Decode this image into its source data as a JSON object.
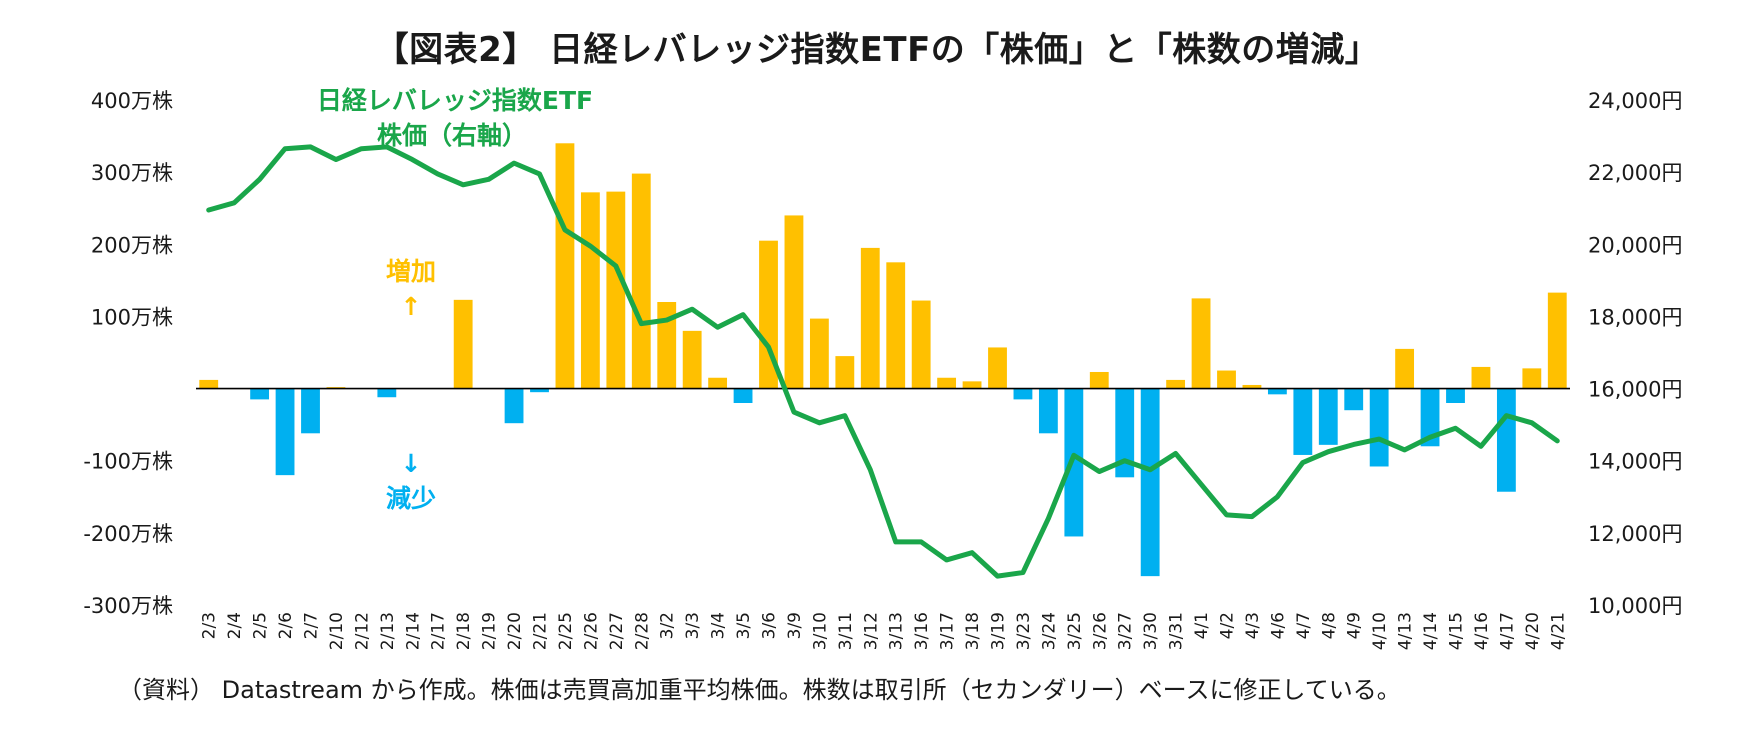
{
  "title": "【図表2】 日経レバレッジ指数ETFの「株価」と「株数の増減」",
  "source": "（資料） Datastream から作成。株価は売買高加重平均株価。株数は取引所（セカンダリー）ベースに修正している。",
  "colors": {
    "increase": "#FFC000",
    "decrease": "#00B0F0",
    "line": "#1AA64A",
    "axis": "#000000"
  },
  "annotations": {
    "line_label_1": "日経レバレッジ指数ETF",
    "line_label_2": "株価（右軸）",
    "increase_label": "増加",
    "increase_arrow": "↑",
    "decrease_label": "減少",
    "decrease_arrow": "↓"
  },
  "chart_data": {
    "type": "bar+line",
    "title": "【図表2】 日経レバレッジ指数ETFの「株価」と「株数の増減」",
    "categories": [
      "2/3",
      "2/4",
      "2/5",
      "2/6",
      "2/7",
      "2/10",
      "2/12",
      "2/13",
      "2/14",
      "2/17",
      "2/18",
      "2/19",
      "2/20",
      "2/21",
      "2/25",
      "2/26",
      "2/27",
      "2/28",
      "3/2",
      "3/3",
      "3/4",
      "3/5",
      "3/6",
      "3/9",
      "3/10",
      "3/11",
      "3/12",
      "3/13",
      "3/16",
      "3/17",
      "3/18",
      "3/19",
      "3/23",
      "3/24",
      "3/25",
      "3/26",
      "3/27",
      "3/30",
      "3/31",
      "4/1",
      "4/2",
      "4/3",
      "4/6",
      "4/7",
      "4/8",
      "4/9",
      "4/10",
      "4/13",
      "4/14",
      "4/15",
      "4/16",
      "4/17",
      "4/20",
      "4/21"
    ],
    "series": [
      {
        "name": "株数の増減",
        "axis": "left",
        "type": "bar",
        "unit": "万株",
        "values": [
          12,
          0,
          -15,
          -120,
          -62,
          2,
          0,
          -12,
          0,
          0,
          123,
          0,
          -48,
          -5,
          340,
          272,
          273,
          298,
          120,
          80,
          15,
          -20,
          205,
          240,
          97,
          45,
          195,
          175,
          122,
          15,
          10,
          57,
          -15,
          -62,
          -205,
          23,
          -123,
          -260,
          12,
          125,
          25,
          5,
          -8,
          -92,
          -78,
          -30,
          -108,
          55,
          -80,
          -20,
          30,
          -143,
          28,
          133
        ]
      },
      {
        "name": "日経レバレッジ指数ETF 株価（右軸）",
        "axis": "right",
        "type": "line",
        "unit": "円",
        "values": [
          20950,
          21150,
          21800,
          22650,
          22700,
          22350,
          22650,
          22700,
          22350,
          21950,
          21650,
          21800,
          22250,
          21950,
          20400,
          19950,
          19400,
          17800,
          17900,
          18200,
          17700,
          18050,
          17150,
          15350,
          15050,
          15250,
          13750,
          11750,
          11750,
          11250,
          11450,
          10800,
          10900,
          12400,
          14150,
          13700,
          14000,
          13750,
          14200,
          13350,
          12500,
          12450,
          13000,
          13950,
          14250,
          14450,
          14600,
          14300,
          14650,
          14900,
          14400,
          15250,
          15050,
          14550
        ]
      }
    ],
    "y_left": {
      "lim": [
        -300,
        400
      ],
      "ticks": [
        400,
        300,
        200,
        100,
        0,
        -100,
        -200,
        -300
      ],
      "tick_labels": [
        "400万株",
        "300万株",
        "200万株",
        "100万株",
        "",
        "-100万株",
        "-200万株",
        "-300万株"
      ]
    },
    "y_right": {
      "lim": [
        10000,
        24000
      ],
      "ticks": [
        24000,
        22000,
        20000,
        18000,
        16000,
        14000,
        12000,
        10000
      ],
      "tick_labels": [
        "24,000円",
        "22,000円",
        "20,000円",
        "18,000円",
        "16,000円",
        "14,000円",
        "12,000円",
        "10,000円"
      ]
    },
    "grid": false,
    "legend": "none"
  }
}
